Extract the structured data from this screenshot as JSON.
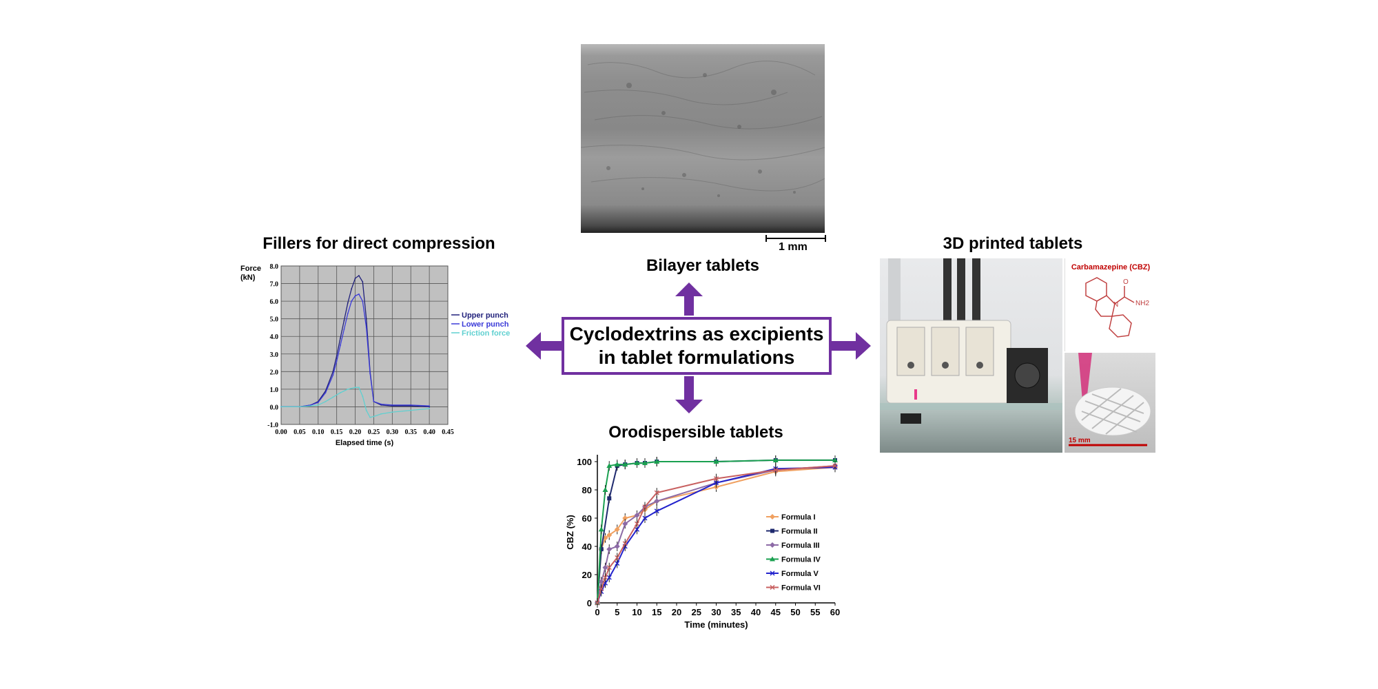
{
  "center": {
    "line1": "Cyclodextrins as excipients",
    "line2": "in tablet formulations"
  },
  "sections": {
    "bilayer": {
      "title": "Bilayer tablets",
      "scale_label": "1 mm"
    },
    "fillers": {
      "title": "Fillers for direct compression"
    },
    "printed": {
      "title": "3D printed tablets",
      "molecule_label": "Carbamazepine (CBZ)",
      "scale_label": "15 mm",
      "atom_o": "O",
      "atom_n": "N",
      "atom_nh2": "NH2"
    },
    "odt": {
      "title": "Orodispersible tablets"
    }
  },
  "colors": {
    "accent": "#7030a0",
    "scale_red": "#c00000"
  },
  "chart_data": [
    {
      "type": "line",
      "xlabel": "Elapsed time (s)",
      "ylabel": "Force (kN)",
      "ylabel_line1": "Force",
      "ylabel_line2": "(kN)",
      "xlim": [
        0,
        0.45
      ],
      "ylim": [
        -1.0,
        8.0
      ],
      "xticks": [
        "0.00",
        "0.05",
        "0.10",
        "0.15",
        "0.20",
        "0.25",
        "0.30",
        "0.35",
        "0.40",
        "0.45"
      ],
      "yticks": [
        "8.0",
        "7.0",
        "6.0",
        "5.0",
        "4.0",
        "3.0",
        "2.0",
        "1.0",
        "0.0",
        "-1.0"
      ],
      "grid": true,
      "legend": "right",
      "series": [
        {
          "name": "Upper punch",
          "color": "#1f1f7a",
          "x": [
            0.0,
            0.05,
            0.08,
            0.1,
            0.12,
            0.14,
            0.15,
            0.16,
            0.17,
            0.18,
            0.19,
            0.2,
            0.21,
            0.22,
            0.23,
            0.24,
            0.25,
            0.27,
            0.3,
            0.35,
            0.4
          ],
          "y": [
            0.0,
            0.0,
            0.1,
            0.3,
            0.9,
            2.0,
            2.9,
            3.9,
            4.9,
            5.9,
            6.7,
            7.3,
            7.45,
            7.1,
            5.0,
            2.0,
            0.3,
            0.1,
            0.05,
            0.05,
            0.0
          ]
        },
        {
          "name": "Lower punch",
          "color": "#3a3ad8",
          "x": [
            0.0,
            0.05,
            0.08,
            0.1,
            0.12,
            0.14,
            0.15,
            0.16,
            0.17,
            0.18,
            0.19,
            0.2,
            0.21,
            0.22,
            0.23,
            0.24,
            0.25,
            0.27,
            0.3,
            0.35,
            0.4
          ],
          "y": [
            0.0,
            0.0,
            0.1,
            0.25,
            0.8,
            1.8,
            2.6,
            3.5,
            4.4,
            5.3,
            6.0,
            6.3,
            6.4,
            6.0,
            4.5,
            1.9,
            0.3,
            0.15,
            0.1,
            0.1,
            0.05
          ]
        },
        {
          "name": "Friction force",
          "color": "#5fd0d0",
          "x": [
            0.0,
            0.05,
            0.08,
            0.1,
            0.12,
            0.14,
            0.16,
            0.18,
            0.2,
            0.21,
            0.22,
            0.23,
            0.24,
            0.25,
            0.27,
            0.3,
            0.35,
            0.4
          ],
          "y": [
            0.0,
            0.0,
            0.05,
            0.1,
            0.3,
            0.55,
            0.8,
            1.0,
            1.1,
            1.1,
            0.6,
            -0.2,
            -0.6,
            -0.55,
            -0.4,
            -0.3,
            -0.2,
            -0.1
          ]
        }
      ]
    },
    {
      "type": "line",
      "xlabel": "Time (minutes)",
      "ylabel": "CBZ (%)",
      "xlim": [
        0,
        60
      ],
      "ylim": [
        0,
        100
      ],
      "xticks": [
        "0",
        "5",
        "10",
        "15",
        "20",
        "25",
        "30",
        "35",
        "40",
        "45",
        "50",
        "55",
        "60"
      ],
      "yticks": [
        "100",
        "80",
        "60",
        "40",
        "20",
        "0"
      ],
      "grid": false,
      "legend": "right",
      "series": [
        {
          "name": "Formula I",
          "color": "#f0a060",
          "marker": "diamond",
          "x": [
            0,
            1,
            2,
            3,
            5,
            7,
            10,
            12,
            15,
            30,
            45,
            60
          ],
          "y": [
            0,
            38,
            46,
            48,
            52,
            60,
            62,
            66,
            72,
            82,
            93,
            96
          ]
        },
        {
          "name": "Formula II",
          "color": "#1f2a6e",
          "marker": "square",
          "x": [
            0,
            1,
            3,
            5,
            7,
            10,
            12,
            15,
            30,
            45,
            60
          ],
          "y": [
            0,
            38,
            74,
            97,
            98,
            99,
            99,
            100,
            100,
            101,
            101
          ]
        },
        {
          "name": "Formula III",
          "color": "#8c6aa6",
          "marker": "diamond",
          "x": [
            0,
            1,
            2,
            3,
            5,
            7,
            10,
            12,
            15,
            30,
            45,
            60
          ],
          "y": [
            0,
            15,
            25,
            38,
            40,
            56,
            62,
            68,
            72,
            85,
            94,
            97
          ]
        },
        {
          "name": "Formula IV",
          "color": "#1aa050",
          "marker": "triangle",
          "x": [
            0,
            1,
            2,
            3,
            5,
            7,
            10,
            12,
            15,
            30,
            45,
            60
          ],
          "y": [
            0,
            52,
            80,
            97,
            98,
            98,
            99,
            99,
            100,
            100,
            101,
            101
          ]
        },
        {
          "name": "Formula V",
          "color": "#2222cc",
          "marker": "x",
          "x": [
            0,
            1,
            2,
            3,
            5,
            7,
            10,
            12,
            15,
            30,
            45,
            60
          ],
          "y": [
            0,
            8,
            14,
            18,
            28,
            40,
            52,
            60,
            65,
            85,
            95,
            96
          ]
        },
        {
          "name": "Formula VI",
          "color": "#c86060",
          "marker": "x",
          "x": [
            0,
            1,
            2,
            3,
            5,
            7,
            10,
            12,
            15,
            30,
            45,
            60
          ],
          "y": [
            0,
            10,
            18,
            25,
            32,
            42,
            56,
            68,
            78,
            88,
            94,
            97
          ]
        }
      ]
    }
  ]
}
